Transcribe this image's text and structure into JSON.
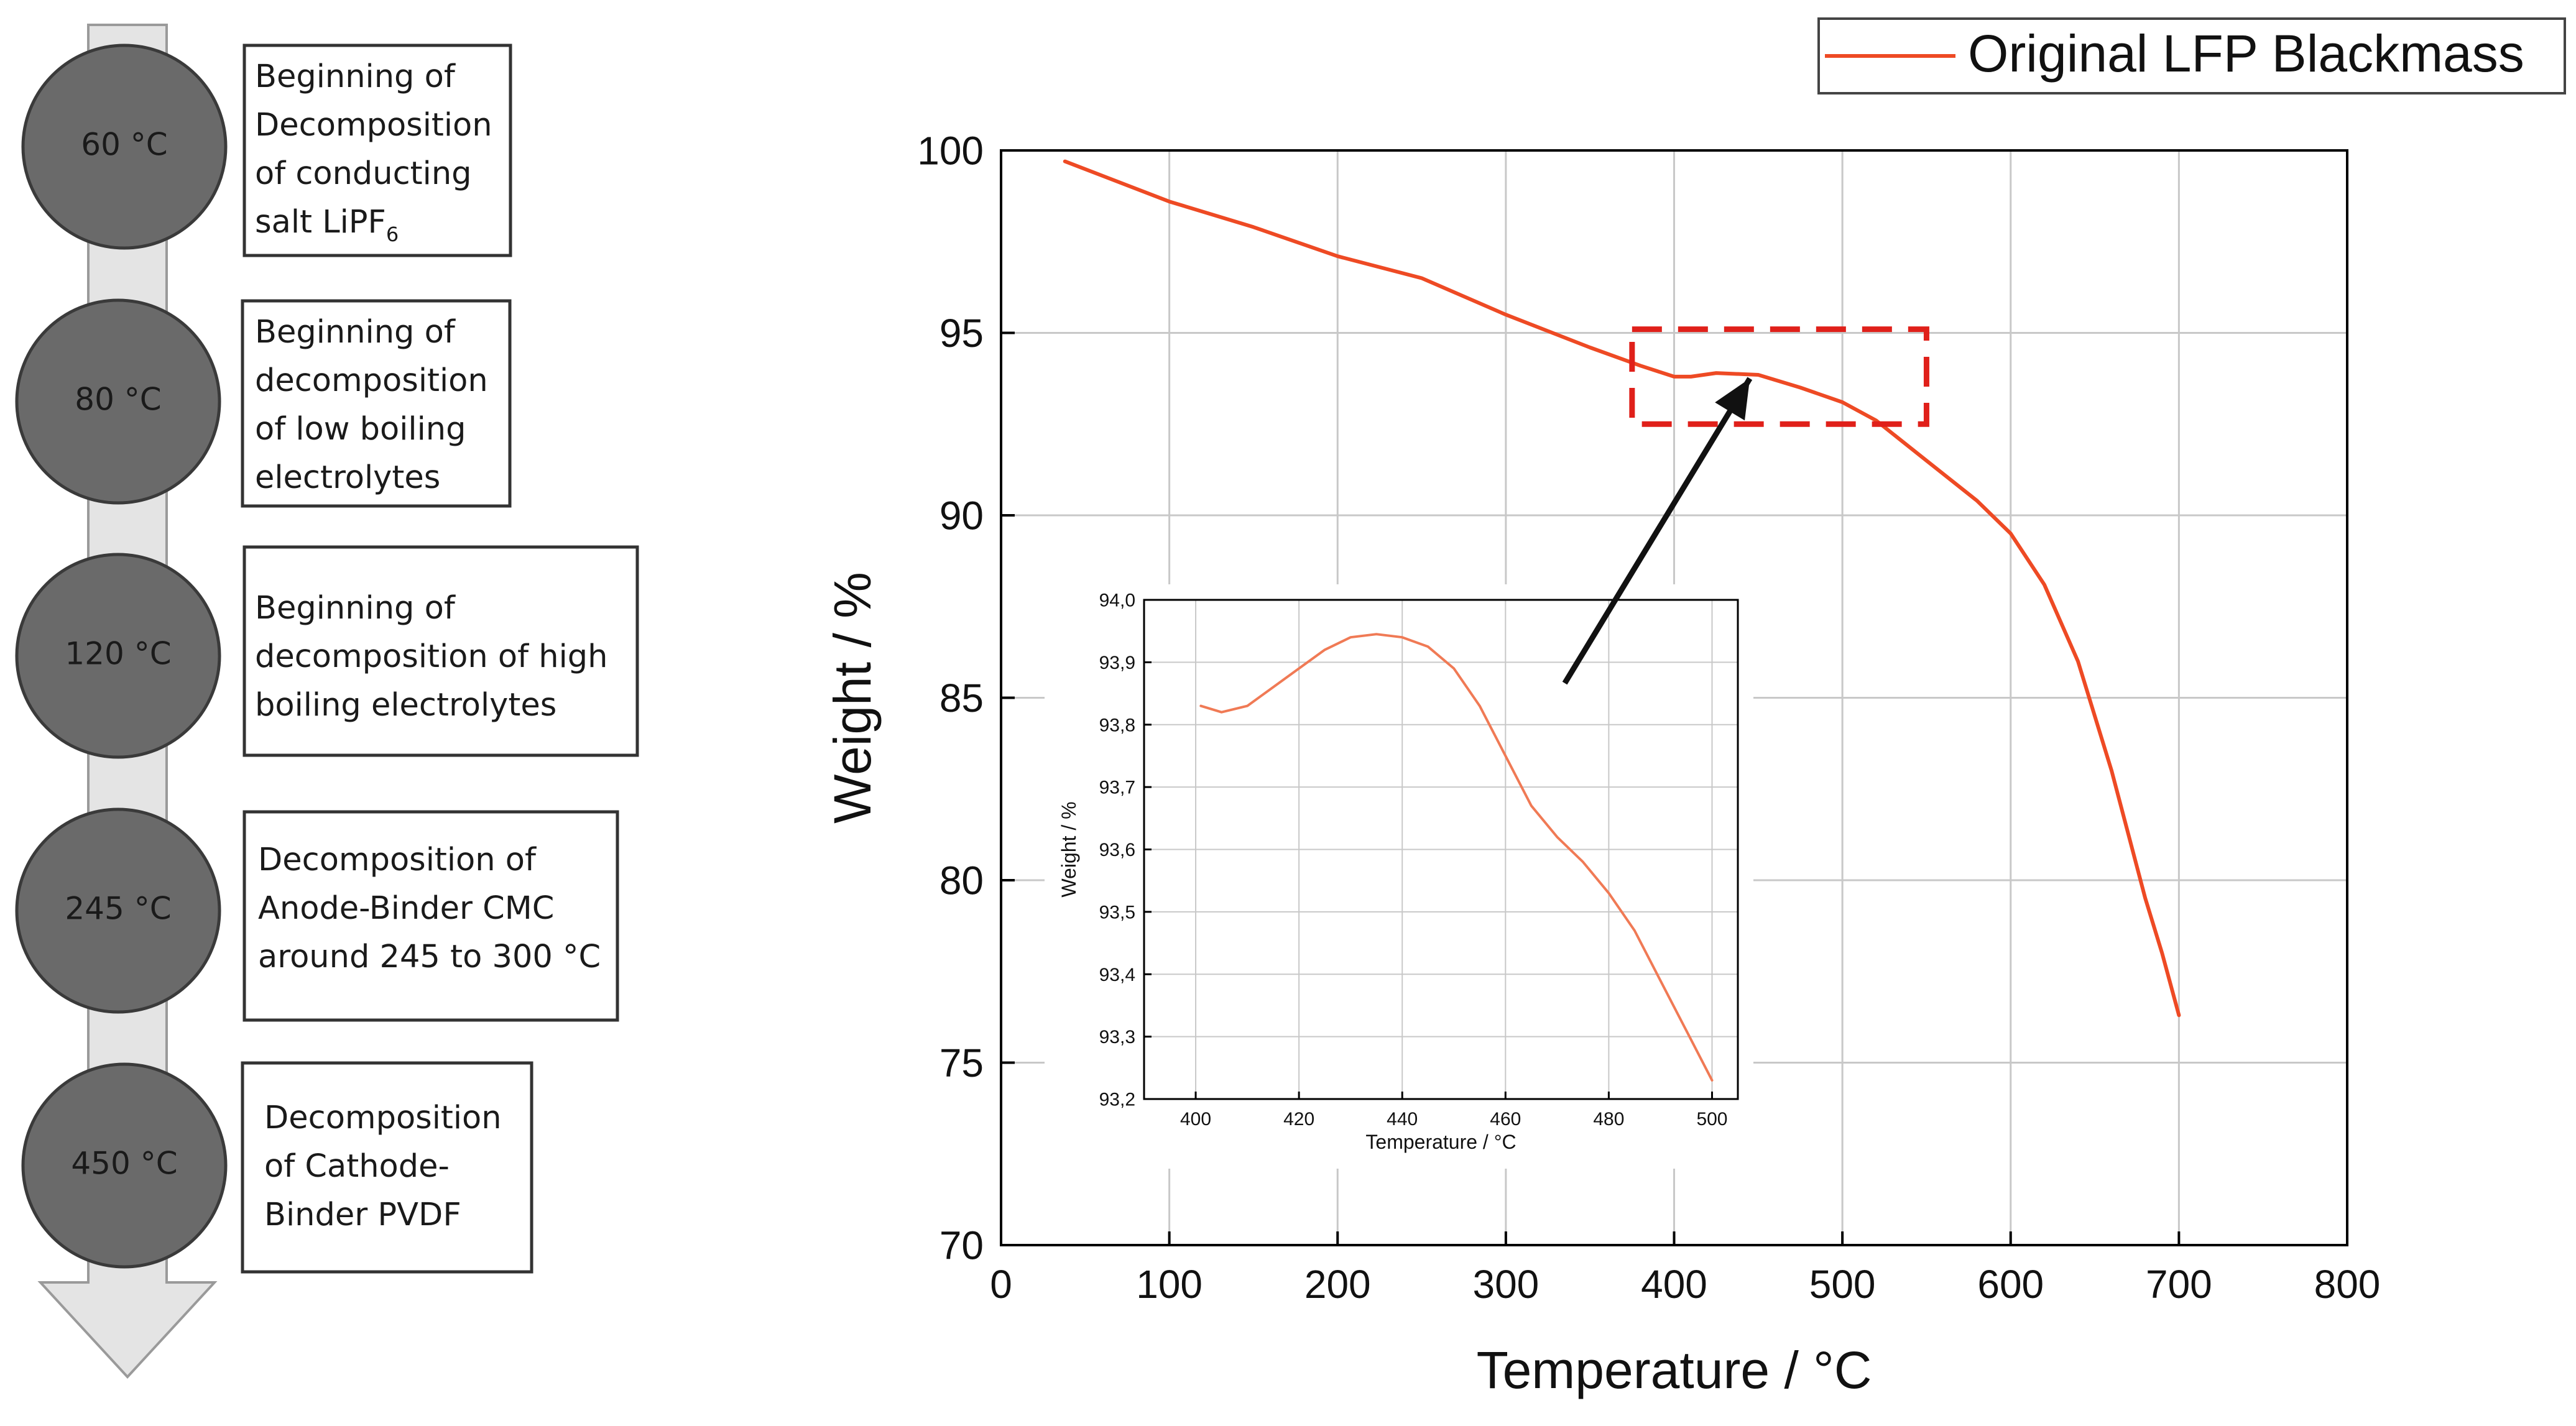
{
  "colors": {
    "curve": "#ee4a24",
    "inset_curve": "#f07a55",
    "highlight_box": "#e0201a",
    "arrow": "#111111",
    "stage_circle": "#6a6a6a",
    "flow_arrow": "#e4e4e4",
    "grid": "#c8c8c8"
  },
  "stages": [
    {
      "temp": "60 °C",
      "lines": [
        "Beginning of",
        "Decomposition",
        "of conducting",
        "salt LiPF"
      ],
      "subscript": "6"
    },
    {
      "temp": "80 °C",
      "lines": [
        "Beginning of",
        "decomposition",
        "of low boiling",
        "electrolytes"
      ],
      "subscript": ""
    },
    {
      "temp": "120 °C",
      "lines": [
        "Beginning of",
        "decomposition of high",
        "boiling electrolytes"
      ],
      "subscript": ""
    },
    {
      "temp": "245 °C",
      "lines": [
        "Decomposition of",
        "Anode-Binder CMC",
        "around 245 to 300 °C"
      ],
      "subscript": ""
    },
    {
      "temp": "450 °C",
      "lines": [
        "Decomposition",
        "of Cathode-",
        "Binder PVDF"
      ],
      "subscript": ""
    }
  ],
  "chart_data": [
    {
      "type": "line",
      "title": "",
      "xlabel": "Temperature / °C",
      "ylabel": "Weight / %",
      "xlim": [
        0,
        800
      ],
      "ylim": [
        70,
        100
      ],
      "xticks": [
        0,
        100,
        200,
        300,
        400,
        500,
        600,
        700,
        800
      ],
      "yticks": [
        70,
        75,
        80,
        85,
        90,
        95,
        100
      ],
      "xtick_labels": [
        "0",
        "100",
        "200",
        "300",
        "400",
        "500",
        "600",
        "700",
        "800"
      ],
      "ytick_labels": [
        "70",
        "75",
        "80",
        "85",
        "90",
        "95",
        "100"
      ],
      "grid": true,
      "legend_position": "top-right",
      "series": [
        {
          "name": "Original LFP Blackmass",
          "x": [
            38,
            100,
            150,
            200,
            250,
            300,
            350,
            380,
            400,
            410,
            425,
            450,
            475,
            500,
            520,
            550,
            580,
            600,
            620,
            640,
            660,
            680,
            690,
            700
          ],
          "y": [
            99.7,
            98.6,
            97.9,
            97.1,
            96.5,
            95.5,
            94.6,
            94.1,
            93.8,
            93.8,
            93.9,
            93.85,
            93.5,
            93.1,
            92.6,
            91.5,
            90.4,
            89.5,
            88.1,
            86.0,
            83.0,
            79.5,
            78.0,
            76.3
          ]
        }
      ],
      "highlight_region": {
        "x": [
          375,
          550
        ],
        "y": [
          92.5,
          95.1
        ]
      },
      "annotation_arrow": {
        "from": [
          445,
          93.75
        ],
        "to": [
          335,
          85.4
        ]
      }
    },
    {
      "type": "line",
      "title": "",
      "xlabel": "Temperature / °C",
      "ylabel": "Weight / %",
      "xlim": [
        390,
        505
      ],
      "ylim": [
        93.2,
        94.0
      ],
      "xticks": [
        400,
        420,
        440,
        460,
        480,
        500
      ],
      "yticks": [
        93.2,
        93.3,
        93.4,
        93.5,
        93.6,
        93.7,
        93.8,
        93.9,
        94.0
      ],
      "xtick_labels": [
        "400",
        "420",
        "440",
        "460",
        "480",
        "500"
      ],
      "ytick_labels": [
        "93,2",
        "93,3",
        "93,4",
        "93,5",
        "93,6",
        "93,7",
        "93,8",
        "93,9",
        "94,0"
      ],
      "grid": true,
      "series": [
        {
          "name": "Original LFP Blackmass (inset 400-500 °C)",
          "x": [
            401,
            405,
            410,
            415,
            420,
            425,
            430,
            435,
            440,
            445,
            450,
            455,
            460,
            465,
            470,
            475,
            480,
            485,
            490,
            495,
            500
          ],
          "y": [
            93.83,
            93.82,
            93.83,
            93.86,
            93.89,
            93.92,
            93.94,
            93.945,
            93.94,
            93.925,
            93.89,
            93.83,
            93.75,
            93.67,
            93.62,
            93.58,
            93.53,
            93.47,
            93.39,
            93.31,
            93.23
          ]
        }
      ]
    }
  ]
}
